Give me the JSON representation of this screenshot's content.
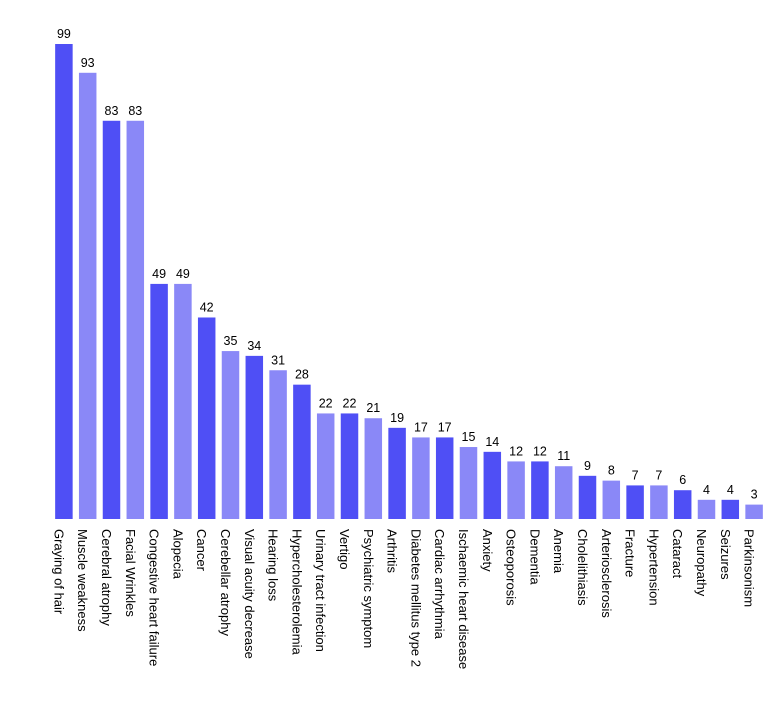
{
  "chart_data": {
    "type": "bar",
    "title": "",
    "xlabel": "",
    "ylabel": "",
    "ylim": [
      0,
      99
    ],
    "grid": false,
    "legend": "none",
    "colors": {
      "dark": "#4F4FF5",
      "light": "#8A88F7"
    },
    "categories": [
      "Graying of hair",
      "Muscle weakness",
      "Cerebral atrophy",
      "Facial Wrinkles",
      "Congestive heart failure",
      "Alopecia",
      "Cancer",
      "Cerebellar atrophy",
      "Visual acuity decrease",
      "Hearing loss",
      "Hypercholesterolemia",
      "Urinary tract infection",
      "Vertigo",
      "Psychiatric symptom",
      "Arthritis",
      "Diabetes mellitus type 2",
      "Cardiac arrhythmia",
      "Ischaemic heart disease",
      "Anxiety",
      "Osteoporosis",
      "Dementia",
      "Anemia",
      "Cholelithiasis",
      "Arteriosclerosis",
      "Fracture",
      "Hypertension",
      "Cataract",
      "Neuropathy",
      "Seizures",
      "Parkinsonism"
    ],
    "values": [
      99,
      93,
      83,
      83,
      49,
      49,
      42,
      35,
      34,
      31,
      28,
      22,
      22,
      21,
      19,
      17,
      17,
      15,
      14,
      12,
      12,
      11,
      9,
      8,
      7,
      7,
      6,
      4,
      4,
      3
    ],
    "bar_colors": [
      "dark",
      "light",
      "dark",
      "light",
      "dark",
      "light",
      "dark",
      "light",
      "dark",
      "light",
      "dark",
      "light",
      "dark",
      "light",
      "dark",
      "light",
      "dark",
      "light",
      "dark",
      "light",
      "dark",
      "light",
      "dark",
      "light",
      "dark",
      "light",
      "dark",
      "light",
      "dark",
      "light"
    ]
  }
}
